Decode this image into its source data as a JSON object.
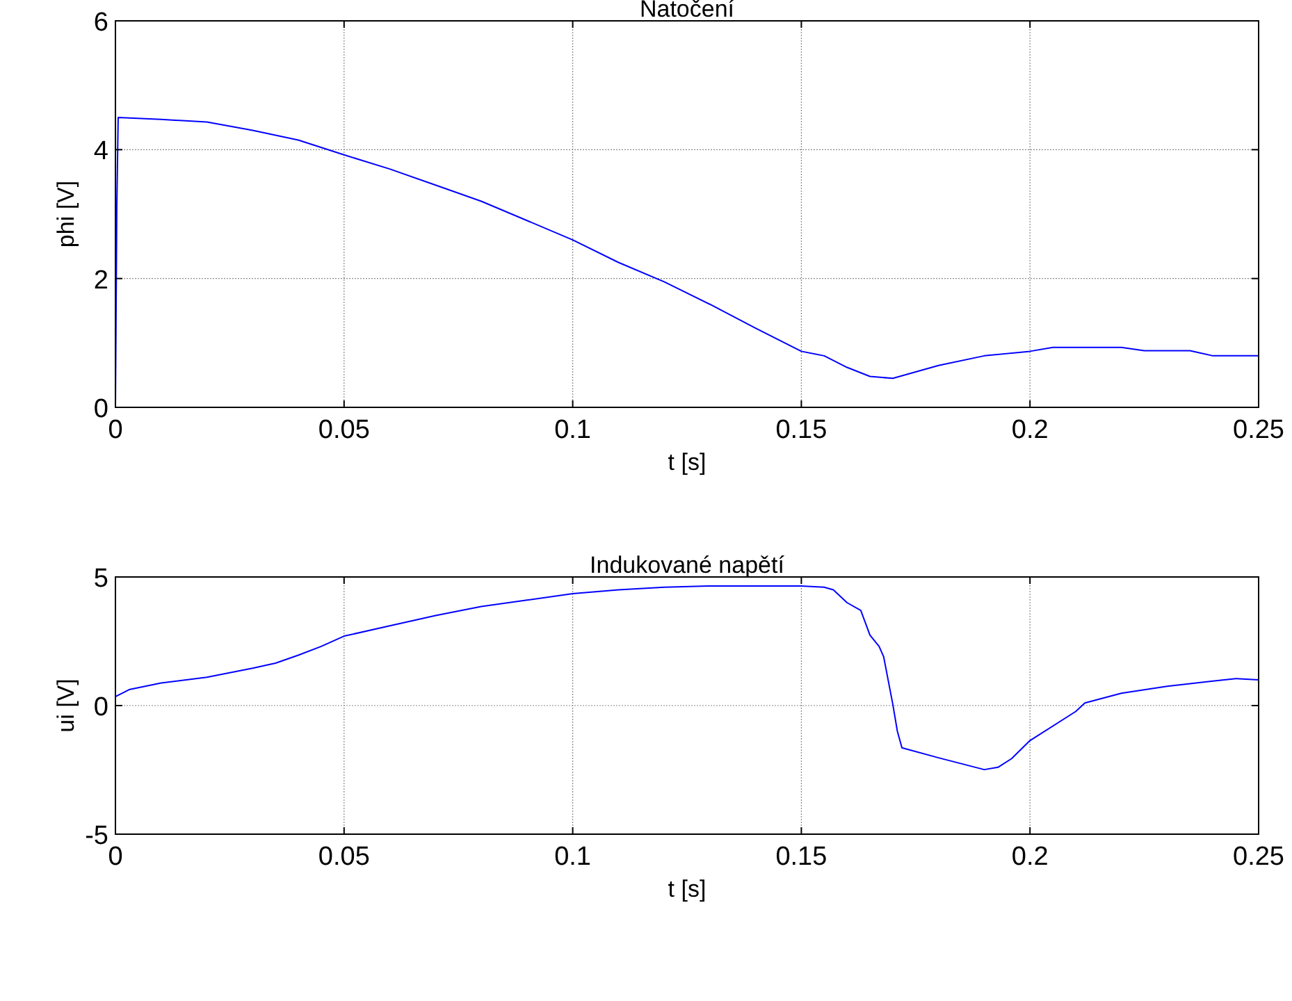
{
  "chart_data": [
    {
      "type": "line",
      "title": "Natočení",
      "xlabel": "t [s]",
      "ylabel": "phi [V]",
      "xlim": [
        0,
        0.25
      ],
      "ylim": [
        0,
        6
      ],
      "xticks": [
        0,
        0.05,
        0.1,
        0.15,
        0.2,
        0.25
      ],
      "yticks": [
        0,
        2,
        4,
        6
      ],
      "grid": true,
      "series": [
        {
          "color": "#0000ff",
          "x": [
            0,
            0.0003,
            0.0006,
            0.01,
            0.02,
            0.03,
            0.04,
            0.05,
            0.06,
            0.07,
            0.08,
            0.09,
            0.1,
            0.11,
            0.12,
            0.13,
            0.14,
            0.15,
            0.155,
            0.16,
            0.165,
            0.17,
            0.175,
            0.18,
            0.19,
            0.2,
            0.205,
            0.22,
            0.225,
            0.235,
            0.24,
            0.25
          ],
          "values": [
            0,
            3.1,
            4.5,
            4.47,
            4.43,
            4.3,
            4.15,
            3.92,
            3.7,
            3.45,
            3.2,
            2.9,
            2.6,
            2.25,
            1.95,
            1.6,
            1.23,
            0.87,
            0.8,
            0.62,
            0.48,
            0.45,
            0.55,
            0.65,
            0.8,
            0.87,
            0.93,
            0.93,
            0.88,
            0.88,
            0.8,
            0.8
          ]
        }
      ]
    },
    {
      "type": "line",
      "title": "Indukované napětí",
      "xlabel": "t [s]",
      "ylabel": "ui [V]",
      "xlim": [
        0,
        0.25
      ],
      "ylim": [
        -5,
        5
      ],
      "xticks": [
        0,
        0.05,
        0.1,
        0.15,
        0.2,
        0.25
      ],
      "yticks": [
        -5,
        0,
        5
      ],
      "grid": true,
      "series": [
        {
          "color": "#0000ff",
          "x": [
            0,
            0.003,
            0.01,
            0.02,
            0.03,
            0.035,
            0.04,
            0.045,
            0.05,
            0.06,
            0.07,
            0.08,
            0.09,
            0.1,
            0.11,
            0.12,
            0.13,
            0.14,
            0.15,
            0.155,
            0.157,
            0.16,
            0.163,
            0.165,
            0.167,
            0.168,
            0.17,
            0.171,
            0.172,
            0.18,
            0.19,
            0.193,
            0.196,
            0.2,
            0.21,
            0.212,
            0.22,
            0.23,
            0.24,
            0.245,
            0.25
          ],
          "values": [
            0.35,
            0.62,
            0.88,
            1.1,
            1.45,
            1.65,
            1.96,
            2.3,
            2.7,
            3.1,
            3.5,
            3.85,
            4.1,
            4.35,
            4.5,
            4.6,
            4.65,
            4.65,
            4.65,
            4.6,
            4.5,
            4.0,
            3.7,
            2.74,
            2.3,
            1.9,
            0.05,
            -1.0,
            -1.64,
            -2.03,
            -2.49,
            -2.4,
            -2.06,
            -1.36,
            -0.23,
            0.1,
            0.48,
            0.75,
            0.95,
            1.05,
            1.0
          ]
        }
      ]
    }
  ]
}
